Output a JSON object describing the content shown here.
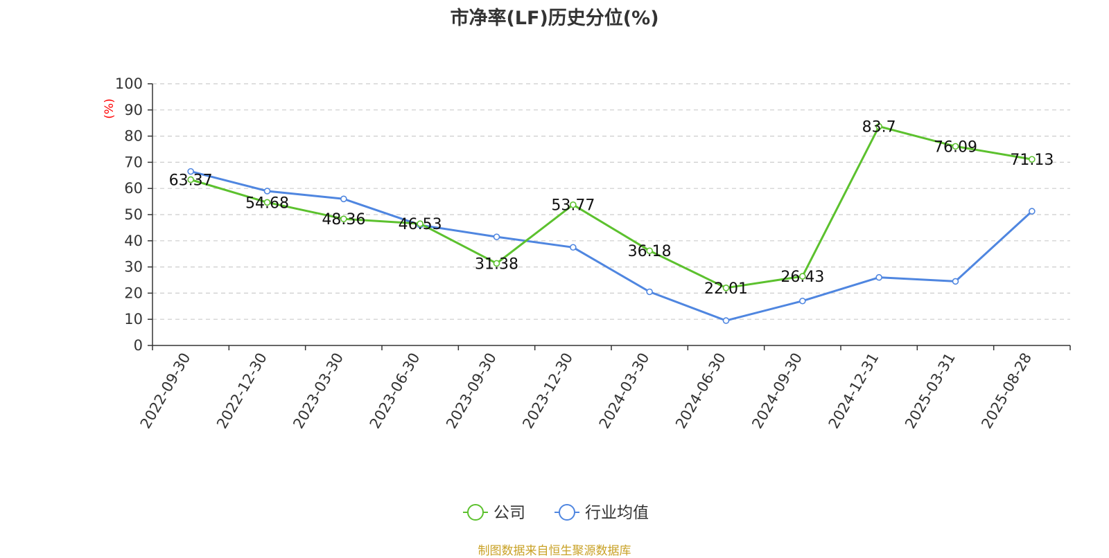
{
  "chart_data": {
    "type": "line",
    "title": "市净率(LF)历史分位(%)",
    "ylabel": "(%)",
    "ylim": [
      0,
      100
    ],
    "yticks": [
      0,
      10,
      20,
      30,
      40,
      50,
      60,
      70,
      80,
      90,
      100
    ],
    "grid": true,
    "legend_position": "bottom-center",
    "categories": [
      "2022-09-30",
      "2022-12-30",
      "2023-03-30",
      "2023-06-30",
      "2023-09-30",
      "2023-12-30",
      "2024-03-30",
      "2024-06-30",
      "2024-09-30",
      "2024-12-31",
      "2025-03-31",
      "2025-08-28"
    ],
    "series": [
      {
        "name": "公司",
        "color": "#5cc12e",
        "show_labels": true,
        "values": [
          63.37,
          54.68,
          48.36,
          46.53,
          31.38,
          53.77,
          36.18,
          22.01,
          26.43,
          83.7,
          76.09,
          71.13
        ]
      },
      {
        "name": "行业均值",
        "color": "#4f86e0",
        "show_labels": false,
        "values": [
          66.5,
          59.0,
          56.0,
          46.0,
          41.5,
          37.5,
          20.5,
          9.5,
          17.0,
          26.0,
          24.5,
          51.3
        ]
      }
    ]
  },
  "footer": {
    "source": "制图数据来自恒生聚源数据库"
  },
  "colors": {
    "axis": "#333333",
    "grid": "#cccccc",
    "ylabel": "#ff0000",
    "source": "#c9a227"
  }
}
